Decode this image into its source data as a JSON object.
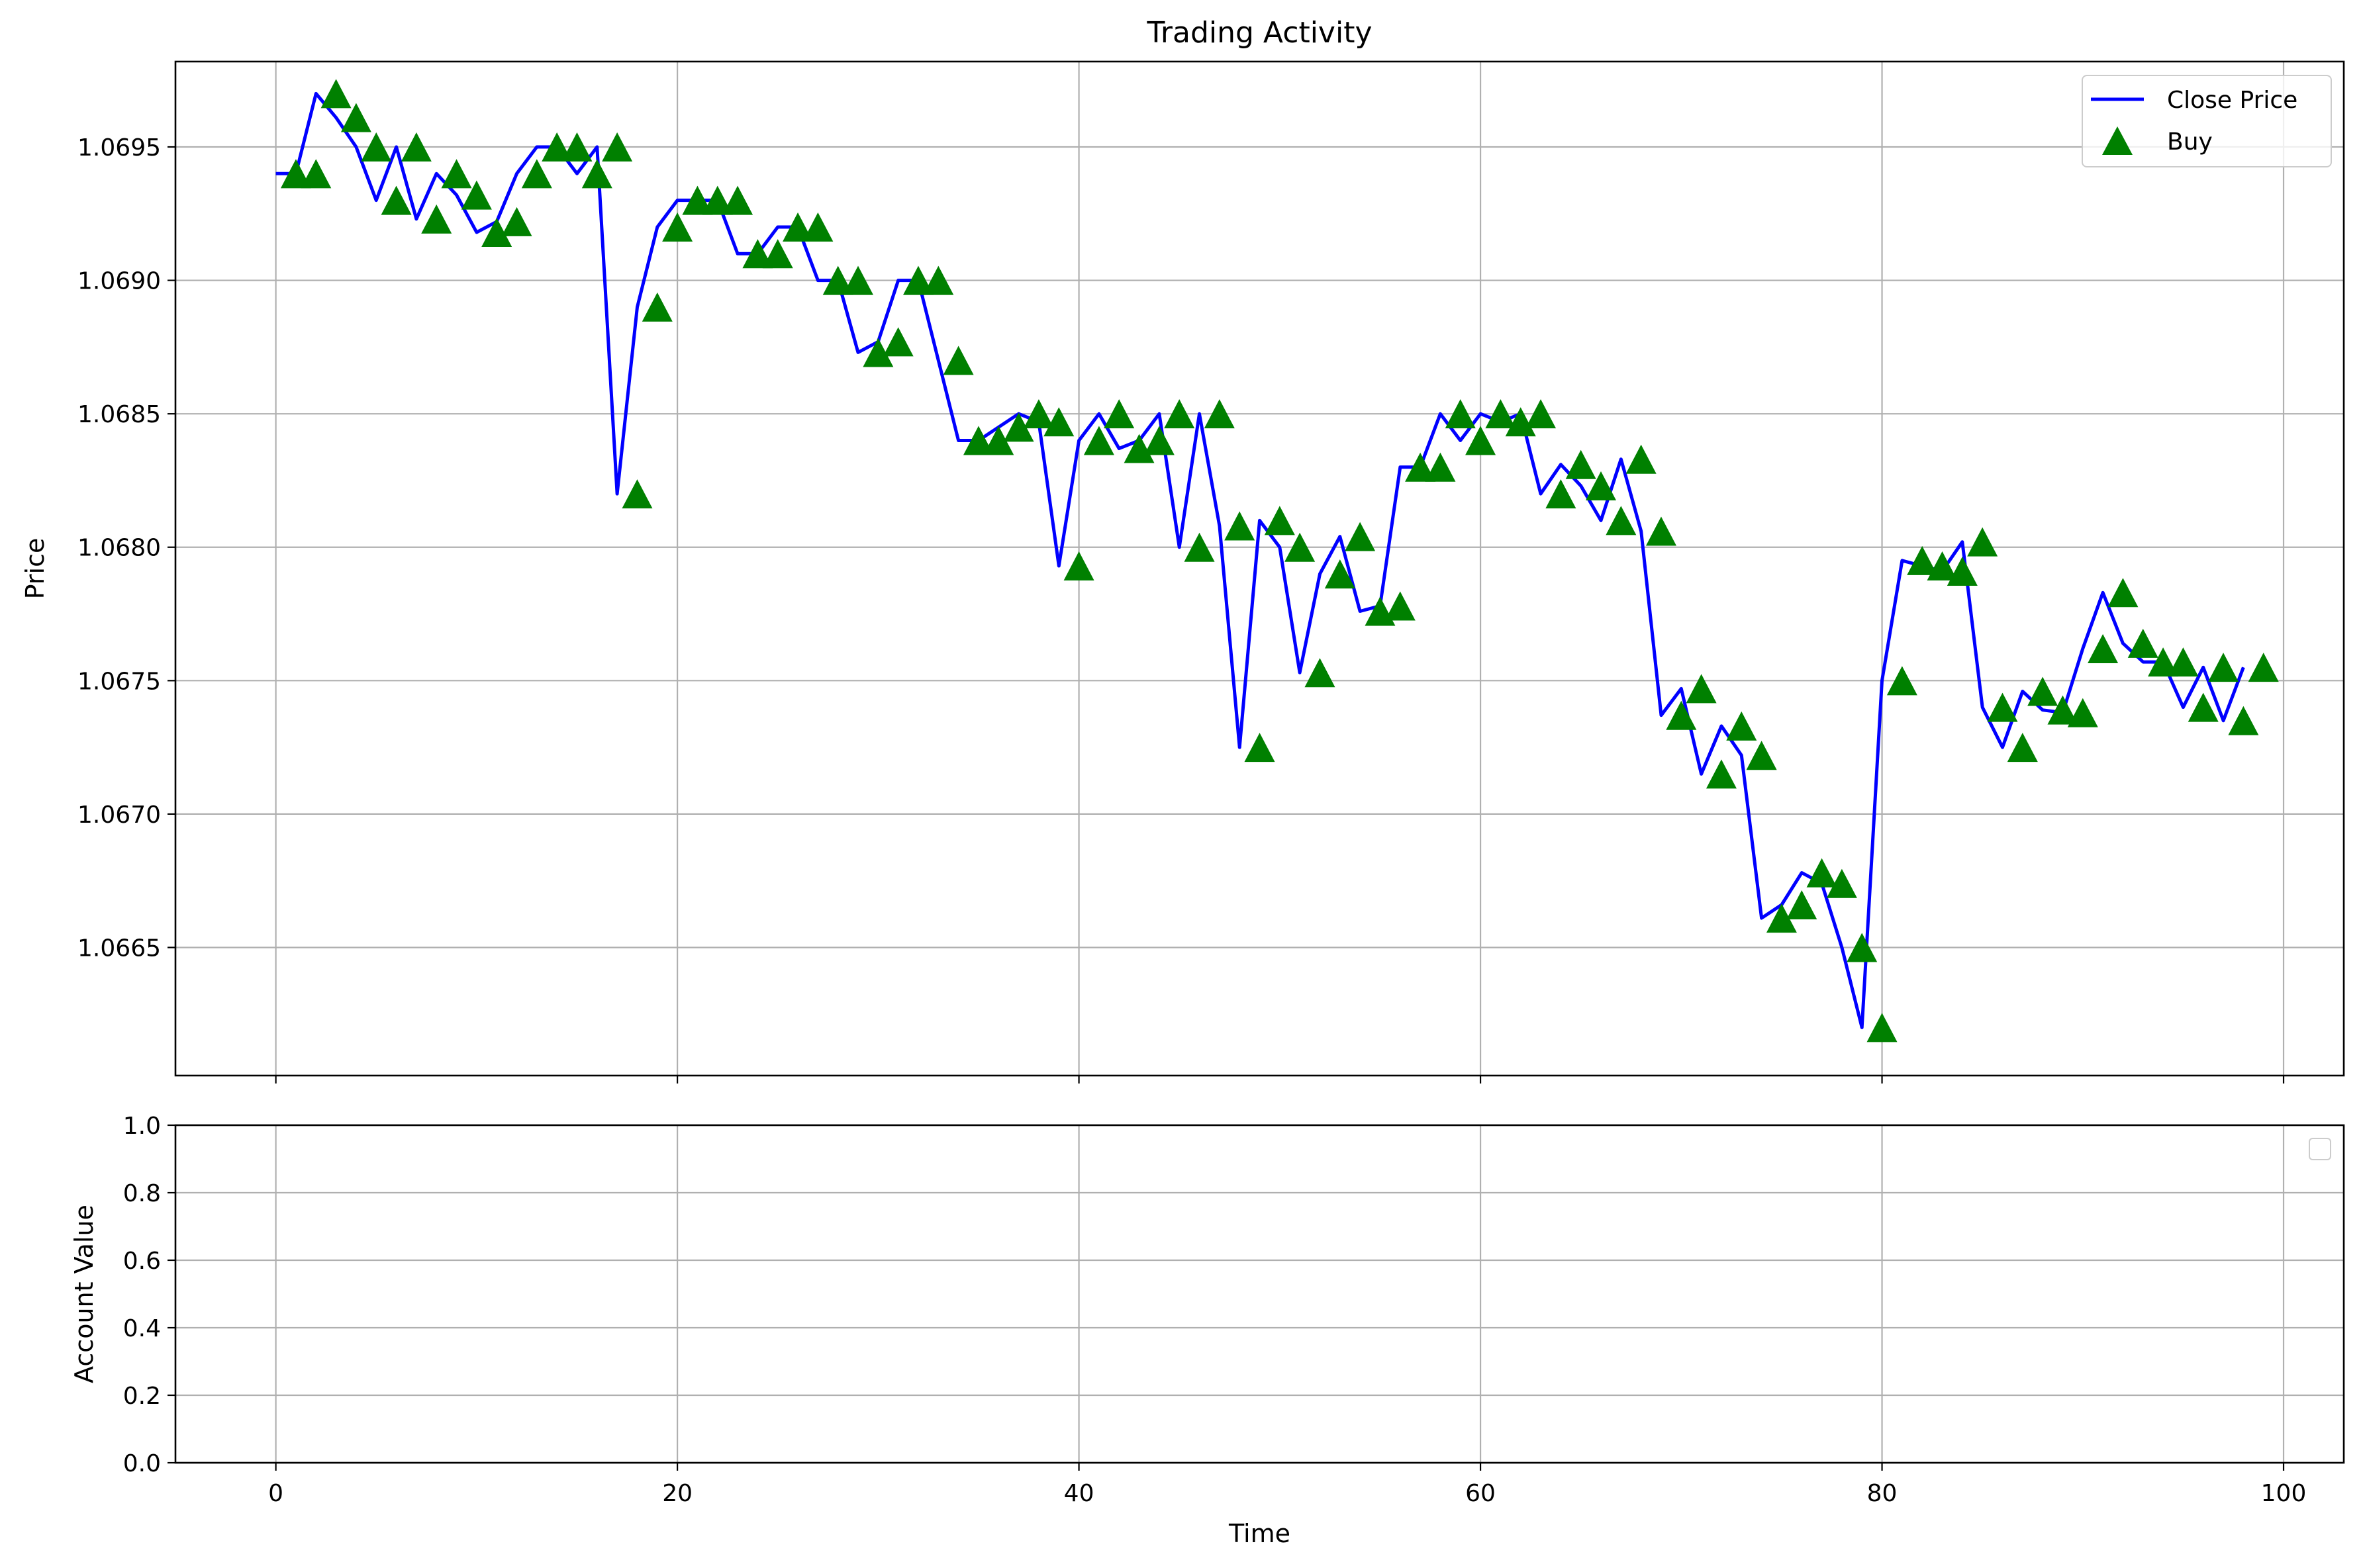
{
  "chart_data": [
    {
      "type": "line",
      "title": "Trading Activity",
      "xlabel": "",
      "ylabel": "Price",
      "xlim": [
        -5,
        103
      ],
      "ylim": [
        1.06602,
        1.06982
      ],
      "xticks": [
        0,
        20,
        40,
        60,
        80,
        100
      ],
      "yticks": [
        1.0665,
        1.067,
        1.0675,
        1.068,
        1.0685,
        1.069,
        1.0695
      ],
      "ytick_labels": [
        "1.0665",
        "1.0670",
        "1.0675",
        "1.0680",
        "1.0685",
        "1.0690",
        "1.0695"
      ],
      "grid": true,
      "legend_position": "top-right",
      "colors": {
        "close": "#0000ff",
        "buy": "#008000"
      },
      "series": [
        {
          "name": "Close Price",
          "type": "line",
          "x": [
            0,
            1,
            2,
            3,
            4,
            5,
            6,
            7,
            8,
            9,
            10,
            11,
            12,
            13,
            14,
            15,
            16,
            17,
            18,
            19,
            20,
            21,
            22,
            23,
            24,
            25,
            26,
            27,
            28,
            29,
            30,
            31,
            32,
            33,
            34,
            35,
            36,
            37,
            38,
            39,
            40,
            41,
            42,
            43,
            44,
            45,
            46,
            47,
            48,
            49,
            50,
            51,
            52,
            53,
            54,
            55,
            56,
            57,
            58,
            59,
            60,
            61,
            62,
            63,
            64,
            65,
            66,
            67,
            68,
            69,
            70,
            71,
            72,
            73,
            74,
            75,
            76,
            77,
            78,
            79,
            80,
            81,
            82,
            83,
            84,
            85,
            86,
            87,
            88,
            89,
            90,
            91,
            92,
            93,
            94,
            95,
            96,
            97,
            98
          ],
          "values": [
            1.0694,
            1.0694,
            1.0697,
            1.06961,
            1.0695,
            1.0693,
            1.0695,
            1.06923,
            1.0694,
            1.06932,
            1.06918,
            1.06922,
            1.0694,
            1.0695,
            1.0695,
            1.0694,
            1.0695,
            1.0682,
            1.0689,
            1.0692,
            1.0693,
            1.0693,
            1.0693,
            1.0691,
            1.0691,
            1.0692,
            1.0692,
            1.069,
            1.069,
            1.06873,
            1.06877,
            1.069,
            1.069,
            1.0687,
            1.0684,
            1.0684,
            1.06845,
            1.0685,
            1.06847,
            1.06793,
            1.0684,
            1.0685,
            1.06837,
            1.0684,
            1.0685,
            1.068,
            1.0685,
            1.06808,
            1.06725,
            1.0681,
            1.068,
            1.06753,
            1.0679,
            1.06804,
            1.06776,
            1.06778,
            1.0683,
            1.0683,
            1.0685,
            1.0684,
            1.0685,
            1.06847,
            1.0685,
            1.0682,
            1.06831,
            1.06823,
            1.0681,
            1.06833,
            1.06806,
            1.06737,
            1.06747,
            1.06715,
            1.06733,
            1.06722,
            1.06661,
            1.06666,
            1.06678,
            1.06674,
            1.0665,
            1.0662,
            1.0675,
            1.06795,
            1.06793,
            1.06791,
            1.06802,
            1.0674,
            1.06725,
            1.06746,
            1.06739,
            1.06738,
            1.06762,
            1.06783,
            1.06764,
            1.06757,
            1.06757,
            1.0674,
            1.06755,
            1.06735,
            1.06755
          ]
        },
        {
          "name": "Buy",
          "type": "scatter",
          "marker": "triangle-up",
          "x": [
            1,
            2,
            3,
            4,
            5,
            6,
            7,
            8,
            9,
            10,
            11,
            12,
            13,
            14,
            15,
            16,
            17,
            18,
            19,
            20,
            21,
            22,
            23,
            24,
            25,
            26,
            27,
            28,
            29,
            30,
            31,
            32,
            33,
            34,
            35,
            36,
            37,
            38,
            39,
            40,
            41,
            42,
            43,
            44,
            45,
            46,
            47,
            48,
            49,
            50,
            51,
            52,
            53,
            54,
            55,
            56,
            57,
            58,
            59,
            60,
            61,
            62,
            63,
            64,
            65,
            66,
            67,
            68,
            69,
            70,
            71,
            72,
            73,
            74,
            75,
            76,
            77,
            78,
            79,
            80,
            81,
            82,
            83,
            84,
            85,
            86,
            87,
            88,
            89,
            90,
            91,
            92,
            93,
            94,
            95,
            96,
            97,
            98,
            99
          ],
          "values": [
            1.0694,
            1.0694,
            1.0697,
            1.06961,
            1.0695,
            1.0693,
            1.0695,
            1.06923,
            1.0694,
            1.06932,
            1.06918,
            1.06922,
            1.0694,
            1.0695,
            1.0695,
            1.0694,
            1.0695,
            1.0682,
            1.0689,
            1.0692,
            1.0693,
            1.0693,
            1.0693,
            1.0691,
            1.0691,
            1.0692,
            1.0692,
            1.069,
            1.069,
            1.06873,
            1.06877,
            1.069,
            1.069,
            1.0687,
            1.0684,
            1.0684,
            1.06845,
            1.0685,
            1.06847,
            1.06793,
            1.0684,
            1.0685,
            1.06837,
            1.0684,
            1.0685,
            1.068,
            1.0685,
            1.06808,
            1.06725,
            1.0681,
            1.068,
            1.06753,
            1.0679,
            1.06804,
            1.06776,
            1.06778,
            1.0683,
            1.0683,
            1.0685,
            1.0684,
            1.0685,
            1.06847,
            1.0685,
            1.0682,
            1.06831,
            1.06823,
            1.0681,
            1.06833,
            1.06806,
            1.06737,
            1.06747,
            1.06715,
            1.06733,
            1.06722,
            1.06661,
            1.06666,
            1.06678,
            1.06674,
            1.0665,
            1.0662,
            1.0675,
            1.06795,
            1.06793,
            1.06791,
            1.06802,
            1.0674,
            1.06725,
            1.06746,
            1.06739,
            1.06738,
            1.06762,
            1.06783,
            1.06764,
            1.06757,
            1.06757,
            1.0674,
            1.06755,
            1.06735,
            1.06755
          ]
        }
      ]
    },
    {
      "type": "line",
      "title": "",
      "xlabel": "Time",
      "ylabel": "Account Value",
      "xlim": [
        -5,
        103
      ],
      "ylim": [
        0,
        1
      ],
      "xticks": [
        0,
        20,
        40,
        60,
        80,
        100
      ],
      "xtick_labels": [
        "0",
        "20",
        "40",
        "60",
        "80",
        "100"
      ],
      "yticks": [
        0,
        0.2,
        0.4,
        0.6,
        0.8,
        1.0
      ],
      "ytick_labels": [
        "0.0",
        "0.2",
        "0.4",
        "0.6",
        "0.8",
        "1.0"
      ],
      "grid": true,
      "legend_position": "top-right",
      "series": []
    }
  ]
}
